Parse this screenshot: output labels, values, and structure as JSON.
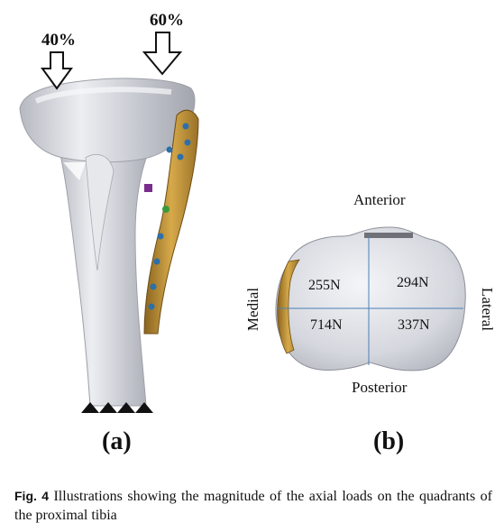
{
  "panel_a": {
    "load_medial": "40%",
    "load_lateral": "60%",
    "label": "(a)"
  },
  "panel_b": {
    "anterior": "Anterior",
    "posterior": "Posterior",
    "medial": "Medial",
    "lateral": "Lateral",
    "force_anterior_medial": "255N",
    "force_anterior_lateral": "294N",
    "force_posterior_medial": "714N",
    "force_posterior_lateral": "337N",
    "label": "(b)"
  },
  "caption": {
    "fig_number": "Fig. 4",
    "text": "Illustrations showing the magnitude of the axial loads on the quadrants of the proximal tibia"
  },
  "colors": {
    "bone": "#c9cbd2",
    "plate": "#b8892f",
    "screw": "#2d6fa8"
  }
}
